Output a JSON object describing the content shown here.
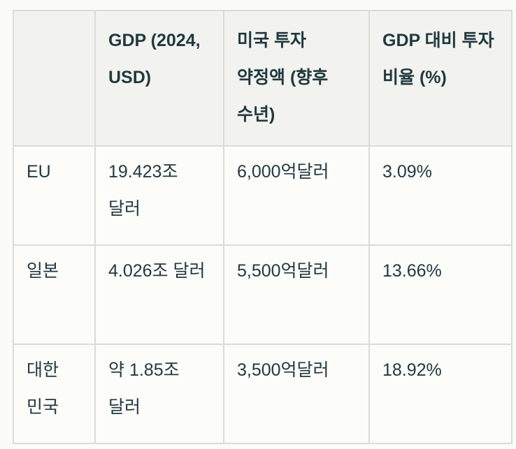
{
  "table": {
    "headers": [
      "",
      "GDP (2024, USD)",
      "미국 투자 약정액 (향후 수년)",
      "GDP 대비 투자 비율 (%)"
    ],
    "rows": [
      {
        "country": "EU",
        "gdp": "19.423조 달러",
        "investment": "6,000억달러",
        "ratio": "3.09%"
      },
      {
        "country": "일본",
        "gdp": "4.026조 달러",
        "investment": "5,500억달러",
        "ratio": "13.66%"
      },
      {
        "country": "대한 민국",
        "gdp": "약 1.85조 달러",
        "investment": "3,500억달러",
        "ratio": "18.92%"
      }
    ]
  },
  "colors": {
    "text": "#1f3a3f",
    "header_bg": "#f2f2ee",
    "cell_bg": "#fcfcf9",
    "border": "#dcdcd6"
  }
}
